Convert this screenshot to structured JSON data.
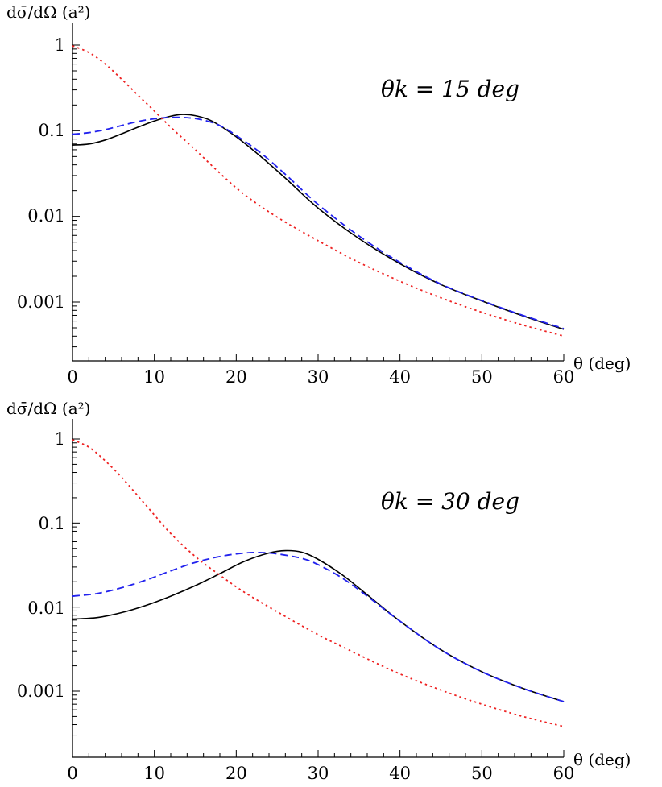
{
  "chart_data": [
    {
      "type": "line",
      "ylabel": "dσ̄/dΩ (a²)",
      "xlabel": "θ (deg)",
      "annotation": "θk = 15 deg",
      "x_scale": "linear",
      "y_scale": "log",
      "xlim": [
        0,
        60
      ],
      "ylim": [
        0.0003,
        1.2
      ],
      "x_ticks": [
        "0",
        "10",
        "20",
        "30",
        "40",
        "50",
        "60"
      ],
      "y_ticks": [
        "1",
        "0.1",
        "0.01",
        "0.001"
      ],
      "series": [
        {
          "color": "#000000",
          "style": "solid",
          "x": [
            0,
            2,
            4,
            6,
            8,
            10,
            12,
            13.5,
            15,
            17,
            20,
            23,
            26,
            30,
            35,
            40,
            45,
            50,
            55,
            60
          ],
          "y": [
            0.068,
            0.07,
            0.078,
            0.092,
            0.11,
            0.13,
            0.148,
            0.155,
            0.15,
            0.13,
            0.085,
            0.05,
            0.028,
            0.0125,
            0.0055,
            0.0028,
            0.0016,
            0.00103,
            0.00069,
            0.00048
          ]
        },
        {
          "color": "#2222ee",
          "style": "dashed",
          "x": [
            0,
            2,
            4,
            6,
            8,
            10,
            12,
            14,
            16,
            18,
            20,
            23,
            26,
            30,
            35,
            40,
            45,
            50,
            55,
            60
          ],
          "y": [
            0.091,
            0.095,
            0.103,
            0.115,
            0.128,
            0.138,
            0.143,
            0.142,
            0.133,
            0.115,
            0.088,
            0.055,
            0.031,
            0.0138,
            0.0059,
            0.0029,
            0.00162,
            0.00104,
            0.0007,
            0.00049
          ]
        },
        {
          "color": "#ee2222",
          "style": "dotted",
          "x": [
            0,
            2,
            4,
            6,
            8,
            10,
            12,
            15,
            18,
            21,
            25,
            30,
            35,
            40,
            45,
            50,
            55,
            60
          ],
          "y": [
            0.98,
            0.82,
            0.6,
            0.4,
            0.26,
            0.17,
            0.11,
            0.06,
            0.032,
            0.018,
            0.0098,
            0.0052,
            0.0029,
            0.00175,
            0.00112,
            0.00076,
            0.00054,
            0.0004
          ]
        }
      ]
    },
    {
      "type": "line",
      "ylabel": "dσ̄/dΩ (a²)",
      "xlabel": "θ (deg)",
      "annotation": "θk = 30 deg",
      "x_scale": "linear",
      "y_scale": "log",
      "xlim": [
        0,
        60
      ],
      "ylim": [
        0.0003,
        1.2
      ],
      "x_ticks": [
        "0",
        "10",
        "20",
        "30",
        "40",
        "50",
        "60"
      ],
      "y_ticks": [
        "1",
        "0.1",
        "0.01",
        "0.001"
      ],
      "series": [
        {
          "color": "#000000",
          "style": "solid",
          "x": [
            0,
            3,
            6,
            9,
            12,
            15,
            18,
            21,
            24,
            26,
            28,
            30,
            33,
            36,
            40,
            45,
            50,
            55,
            60
          ],
          "y": [
            0.0072,
            0.0075,
            0.0086,
            0.0105,
            0.0135,
            0.018,
            0.025,
            0.035,
            0.044,
            0.047,
            0.045,
            0.037,
            0.024,
            0.014,
            0.0068,
            0.0031,
            0.0017,
            0.00108,
            0.00075
          ]
        },
        {
          "color": "#2222ee",
          "style": "dashed",
          "x": [
            0,
            3,
            6,
            9,
            12,
            15,
            18,
            21,
            23,
            25,
            28,
            30,
            33,
            36,
            40,
            45,
            50,
            55,
            60
          ],
          "y": [
            0.0135,
            0.0145,
            0.017,
            0.021,
            0.027,
            0.034,
            0.04,
            0.044,
            0.0445,
            0.043,
            0.038,
            0.032,
            0.022,
            0.0135,
            0.0068,
            0.0031,
            0.0017,
            0.00108,
            0.00075
          ]
        },
        {
          "color": "#ee2222",
          "style": "dotted",
          "x": [
            0,
            2,
            4,
            6,
            8,
            10,
            12,
            15,
            18,
            21,
            25,
            30,
            35,
            40,
            45,
            50,
            55,
            60
          ],
          "y": [
            0.98,
            0.8,
            0.55,
            0.35,
            0.21,
            0.125,
            0.075,
            0.04,
            0.024,
            0.015,
            0.0088,
            0.0047,
            0.0027,
            0.0016,
            0.00103,
            0.0007,
            0.0005,
            0.00038
          ]
        }
      ]
    }
  ]
}
